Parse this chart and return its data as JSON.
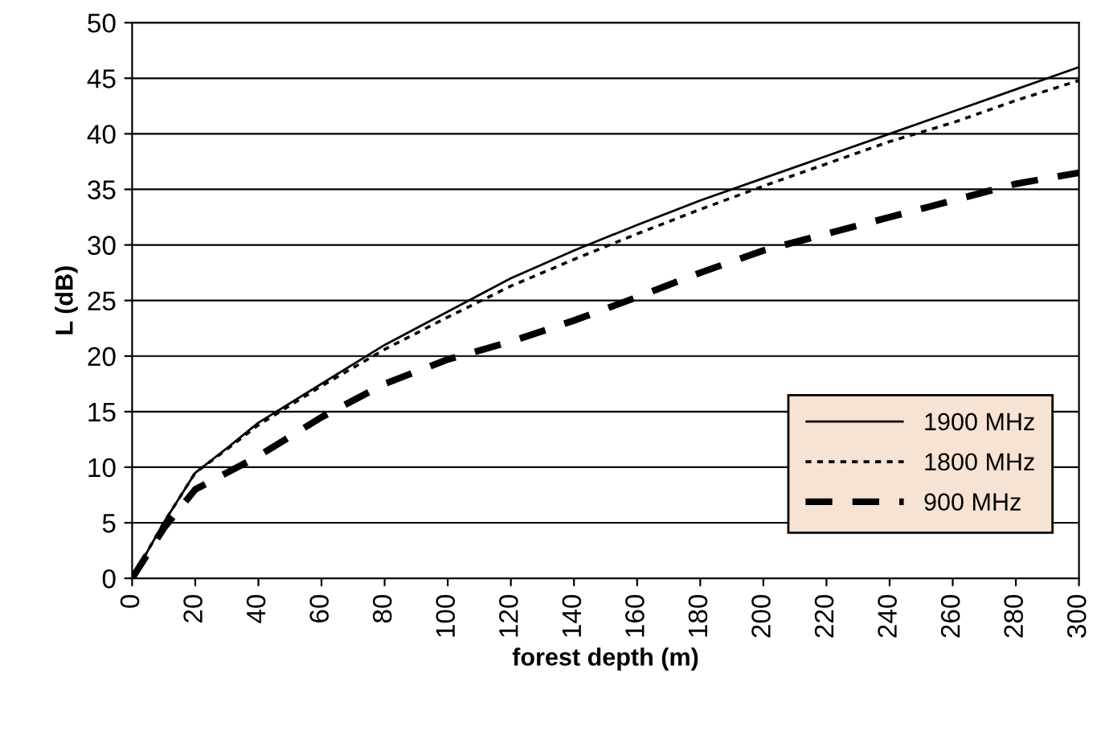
{
  "chart_data": {
    "type": "line",
    "xlabel": "forest depth (m)",
    "ylabel": "L (dB)",
    "x": [
      0,
      10,
      20,
      30,
      40,
      60,
      80,
      100,
      120,
      140,
      160,
      180,
      200,
      220,
      240,
      260,
      280,
      300
    ],
    "series": [
      {
        "name": "1900 MHz",
        "color": "#000000",
        "line_style": "solid",
        "values": [
          0,
          5,
          9.5,
          11.7,
          14,
          17.5,
          21,
          24,
          27,
          29.5,
          31.8,
          34,
          36,
          38,
          40,
          42,
          44,
          46
        ]
      },
      {
        "name": "1800 MHz",
        "color": "#000000",
        "line_style": "dotted",
        "values": [
          0,
          5,
          9.5,
          11.6,
          13.8,
          17.3,
          20.6,
          23.5,
          26.3,
          28.7,
          31,
          33.2,
          35.3,
          37.3,
          39.3,
          41,
          43,
          44.8
        ]
      },
      {
        "name": "900 MHz",
        "color": "#000000",
        "line_style": "dashed",
        "values": [
          0,
          4.5,
          8,
          9.5,
          11,
          14.5,
          17.5,
          19.7,
          21.3,
          23.2,
          25.3,
          27.5,
          29.5,
          31,
          32.5,
          34,
          35.5,
          36.5
        ]
      }
    ],
    "xlim": [
      0,
      300
    ],
    "xticks": [
      0,
      20,
      40,
      60,
      80,
      100,
      120,
      140,
      160,
      180,
      200,
      220,
      240,
      260,
      280,
      300
    ],
    "ylim": [
      0,
      50
    ],
    "yticks": [
      0,
      5,
      10,
      15,
      20,
      25,
      30,
      35,
      40,
      45,
      50
    ],
    "grid": "y",
    "legend": "bottom right",
    "marker": "none"
  }
}
